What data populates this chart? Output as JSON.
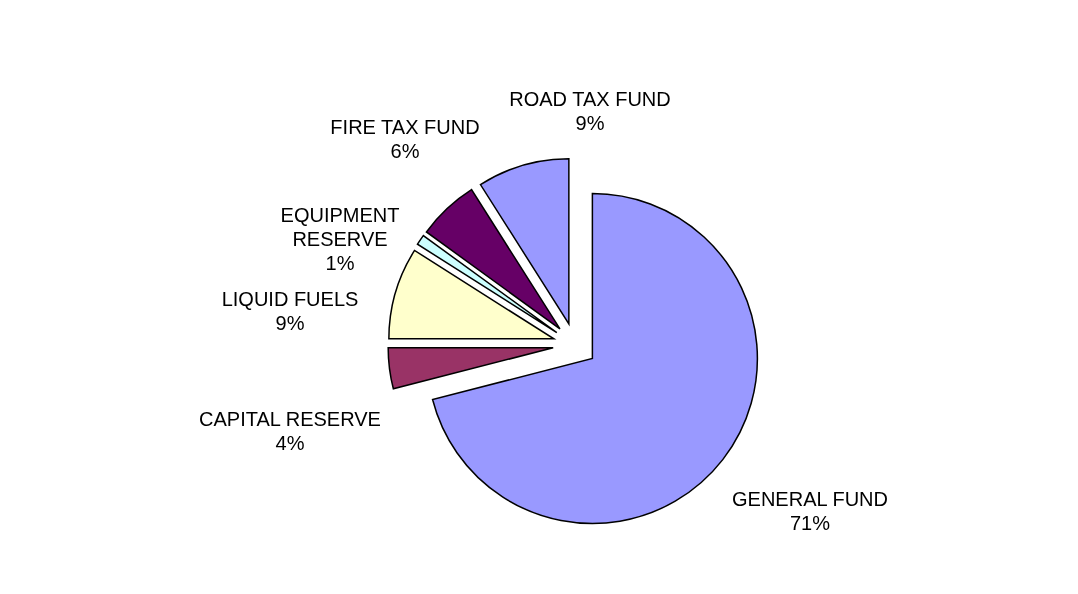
{
  "chart_data": {
    "type": "pie",
    "categories": [
      "GENERAL FUND",
      "CAPITAL RESERVE",
      "LIQUID FUELS",
      "EQUIPMENT RESERVE",
      "FIRE TAX FUND",
      "ROAD TAX FUND"
    ],
    "values": [
      71,
      4,
      9,
      1,
      6,
      9
    ],
    "value_labels": [
      "71%",
      "4%",
      "9%",
      "1%",
      "6%",
      "9%"
    ],
    "colors": [
      "#9999ff",
      "#993366",
      "#ffffcc",
      "#ccffff",
      "#660066",
      "#9999ff"
    ]
  }
}
